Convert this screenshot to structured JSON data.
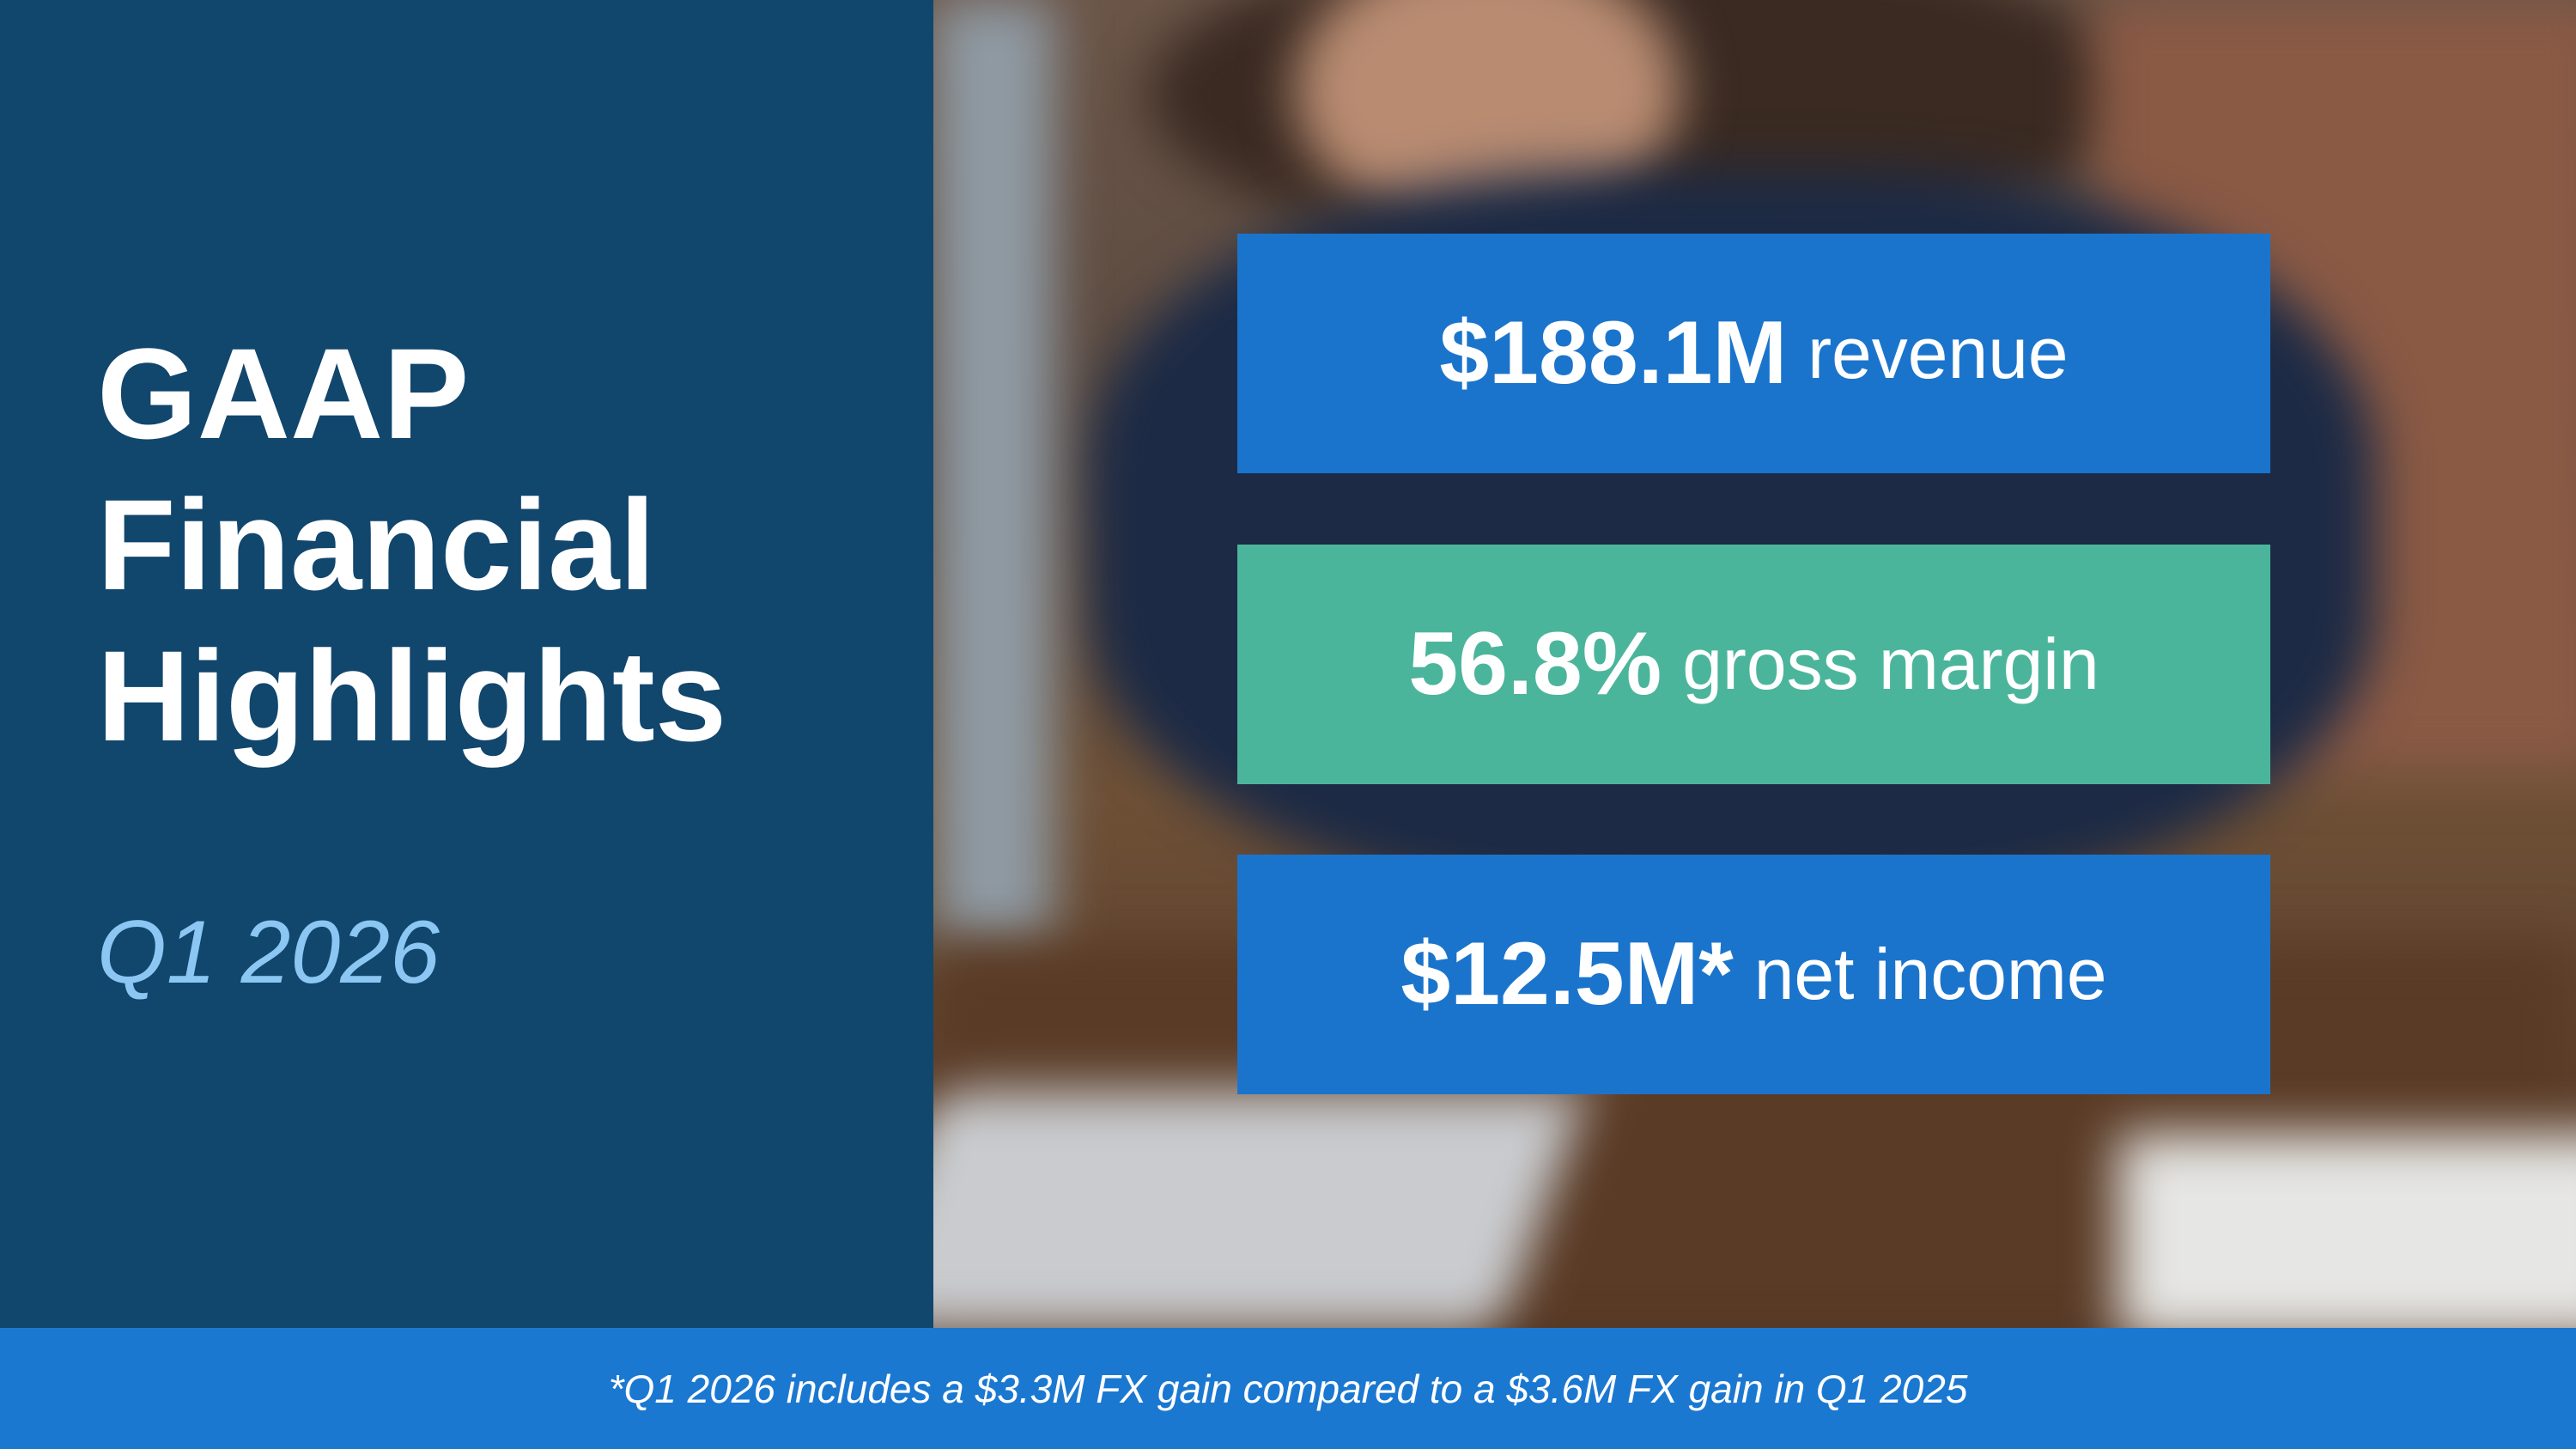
{
  "title_lines": [
    "GAAP",
    "Financial",
    "Highlights"
  ],
  "subtitle": "Q1 2026",
  "highlights": [
    {
      "value": "$188.1M",
      "label": "revenue"
    },
    {
      "value": "56.8%",
      "label": "gross margin"
    },
    {
      "value": "$12.5M*",
      "label": "net income"
    }
  ],
  "footnote": "*Q1 2026 includes a $3.3M FX gain compared to a $3.6M FX gain in Q1 2025"
}
